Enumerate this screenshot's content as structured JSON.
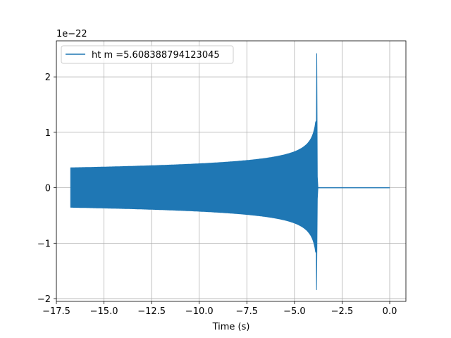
{
  "chart_data": {
    "type": "line",
    "xlabel": "Time (s)",
    "ylabel": "",
    "scale_label": "1e−22",
    "xlim": [
      -17.5,
      0.85
    ],
    "ylim": [
      -2.05,
      2.65
    ],
    "xticks": [
      -17.5,
      -15.0,
      -12.5,
      -10.0,
      -7.5,
      -5.0,
      -2.5,
      0.0
    ],
    "xtick_labels": [
      "−17.5",
      "−15.0",
      "−12.5",
      "−10.0",
      "−7.5",
      "−5.0",
      "−2.5",
      "0.0"
    ],
    "yticks": [
      -2,
      -1,
      0,
      1,
      2
    ],
    "ytick_labels": [
      "−2",
      "−1",
      "0",
      "1",
      "2"
    ],
    "grid": true,
    "legend_position": "top-left",
    "series": [
      {
        "name": "ht m =5.608388794123045",
        "color": "#1f77b4",
        "t_start": -16.75,
        "t_merger": -3.83,
        "t_end": 0.0,
        "amp_start": 0.36,
        "peak_max": 2.42,
        "peak_min": -1.84
      }
    ]
  }
}
